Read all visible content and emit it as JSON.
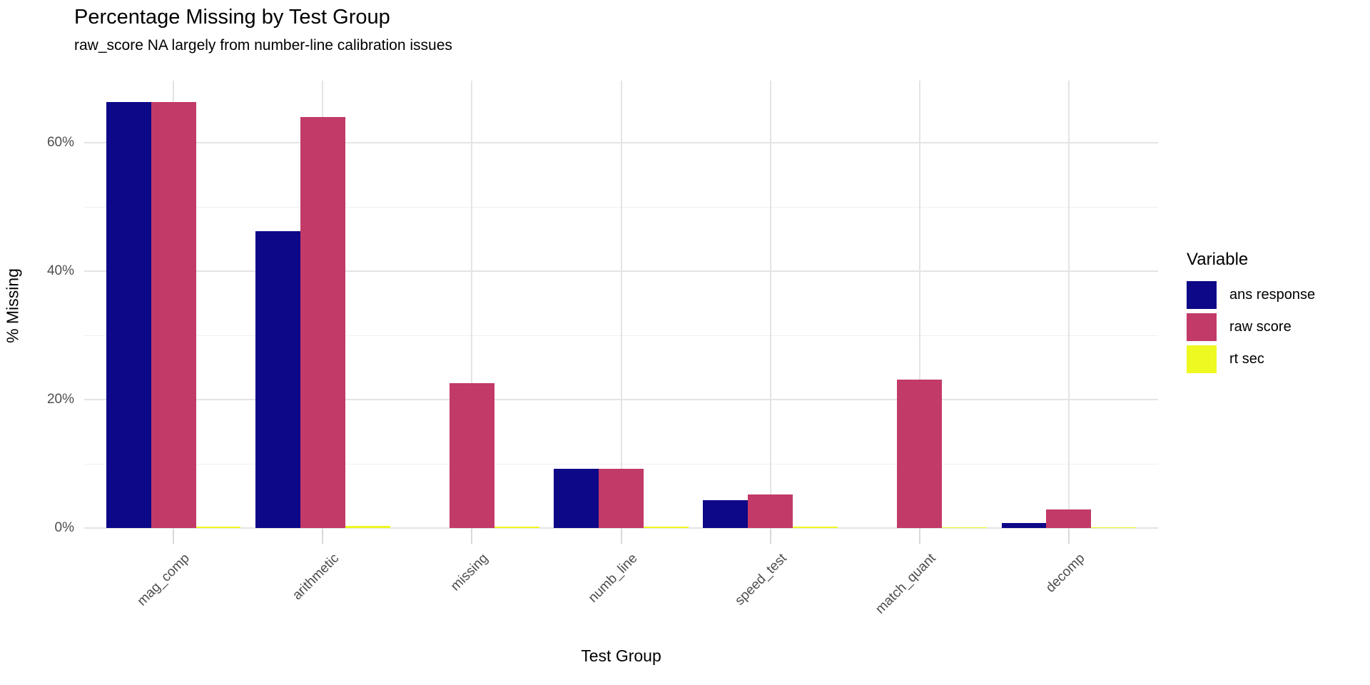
{
  "header": {
    "title": "Percentage Missing by Test Group",
    "subtitle": "raw_score NA largely from number-line calibration issues"
  },
  "chart_data": {
    "type": "bar",
    "title": "Percentage Missing by Test Group",
    "subtitle": "raw_score NA largely from number-line calibration issues",
    "xlabel": "Test Group",
    "ylabel": "% Missing",
    "legend_title": "Variable",
    "legend_position": "right",
    "grid": true,
    "categories": [
      "mag_comp",
      "arithmetic",
      "missing",
      "numb_line",
      "speed_test",
      "match_quant",
      "decomp"
    ],
    "series": [
      {
        "name": "ans response",
        "color": "#0D0887",
        "values": [
          66.4,
          46.2,
          0,
          9.2,
          4.3,
          0,
          0.8
        ]
      },
      {
        "name": "raw score",
        "color": "#C23A68",
        "values": [
          66.4,
          64.0,
          22.6,
          9.2,
          5.2,
          23.1,
          2.9
        ]
      },
      {
        "name": "rt sec",
        "color": "#EEF821",
        "values": [
          0.2,
          0.3,
          0.2,
          0.2,
          0.2,
          0.1,
          0.05
        ]
      }
    ],
    "yticks": [
      {
        "value": 0,
        "label": "0%"
      },
      {
        "value": 20,
        "label": "20%"
      },
      {
        "value": 40,
        "label": "40%"
      },
      {
        "value": 60,
        "label": "60%"
      }
    ],
    "minor_yticks": [
      10,
      30,
      50
    ],
    "ylim": [
      0,
      69.7
    ]
  }
}
